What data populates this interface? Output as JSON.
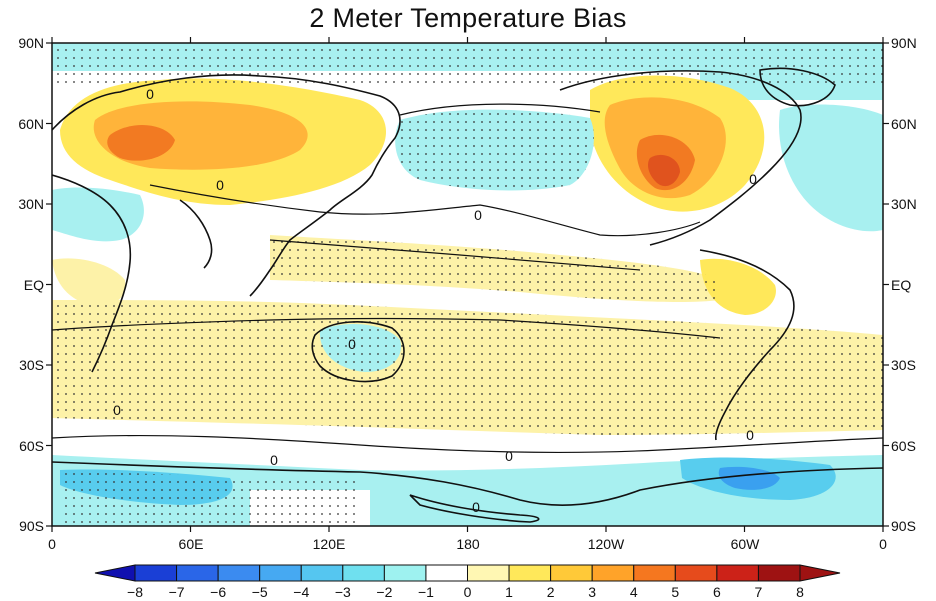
{
  "title": "2 Meter Temperature Bias",
  "map": {
    "lat_ticks_left": [
      "90N",
      "60N",
      "30N",
      "EQ",
      "30S",
      "60S",
      "90S"
    ],
    "lat_ticks_right": [
      "90N",
      "60N",
      "30N",
      "EQ",
      "30S",
      "60S",
      "90S"
    ],
    "lon_ticks": [
      "0",
      "60E",
      "120E",
      "180",
      "120W",
      "60W",
      "0"
    ],
    "contour_level_label": "0"
  },
  "colorbar": {
    "levels": [
      "-8",
      "-7",
      "-6",
      "-5",
      "-4",
      "-3",
      "-2",
      "-1",
      "0",
      "1",
      "2",
      "3",
      "4",
      "5",
      "6",
      "7",
      "8"
    ],
    "colors": [
      "#1010b0",
      "#1a3fd6",
      "#2a66e8",
      "#3b8bf0",
      "#46a9f2",
      "#55c6f0",
      "#6fe0ef",
      "#9ef2f0",
      "#ffffff",
      "#fff7b3",
      "#ffe85a",
      "#ffc938",
      "#ffa329",
      "#f5771f",
      "#e64b1c",
      "#cc2218",
      "#9e1212"
    ]
  },
  "colors": {
    "warm_light": "#fdf2a8",
    "warm_yellow": "#ffe85a",
    "warm_orange": "#ffb43a",
    "warm_deep": "#f27a22",
    "warm_red": "#e0531e",
    "cool_light": "#a8f0f0",
    "cool_cyan": "#58cdee",
    "cool_blue": "#3aa0ef",
    "coast": "#111111",
    "stipple": "#333333"
  }
}
